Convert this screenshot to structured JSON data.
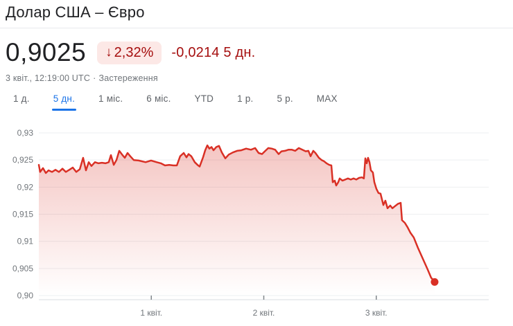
{
  "header": {
    "title": "Долар США – Євро"
  },
  "quote": {
    "price": "0,9025",
    "change_arrow": "↓",
    "change_percent": "2,32%",
    "change_value": "-0,0214",
    "change_period": "5 дн.",
    "timestamp": "3 квіт., 12:19:00 UTC",
    "separator": "·",
    "disclaimer": "Застереження"
  },
  "tabs": [
    {
      "id": "1d",
      "label": "1 д.",
      "selected": false
    },
    {
      "id": "5d",
      "label": "5 дн.",
      "selected": true
    },
    {
      "id": "1mo",
      "label": "1 міс.",
      "selected": false
    },
    {
      "id": "6mo",
      "label": "6 міс.",
      "selected": false
    },
    {
      "id": "ytd",
      "label": "YTD",
      "selected": false
    },
    {
      "id": "1y",
      "label": "1 р.",
      "selected": false
    },
    {
      "id": "5y",
      "label": "5 р.",
      "selected": false
    },
    {
      "id": "max",
      "label": "MAX",
      "selected": false
    }
  ],
  "colors": {
    "accent_blue": "#1a73e8",
    "negative_text": "#a50e0e",
    "badge_bg": "#fce8e6",
    "line_red": "#d93025",
    "text_primary": "#202124",
    "text_secondary": "#70757a",
    "grid": "#edeff1",
    "axis": "#dadce0",
    "tick": "#80868b",
    "divider": "#e8eaed"
  },
  "chart_data": {
    "type": "area",
    "title": "Долар США – Євро, 5 дн.",
    "xlabel": "",
    "ylabel": "",
    "x_unit": "days since 31 бер. 00:00 UTC",
    "xlim": [
      0,
      4
    ],
    "ylim": [
      0.9,
      0.93
    ],
    "grid": true,
    "legend": "none",
    "line_color": "#d93025",
    "fill_gradient_top_opacity": 0.3,
    "end_dot": true,
    "last_value": 0.9025,
    "y_ticks": [
      {
        "value": 0.93,
        "label": "0,93"
      },
      {
        "value": 0.925,
        "label": "0,925"
      },
      {
        "value": 0.92,
        "label": "0,92"
      },
      {
        "value": 0.915,
        "label": "0,915"
      },
      {
        "value": 0.91,
        "label": "0,91"
      },
      {
        "value": 0.905,
        "label": "0,905"
      },
      {
        "value": 0.9,
        "label": "0,90"
      }
    ],
    "x_ticks": [
      {
        "value": 1,
        "label": "1 квіт."
      },
      {
        "value": 2,
        "label": "2 квіт."
      },
      {
        "value": 3,
        "label": "3 квіт."
      }
    ],
    "series": [
      {
        "name": "USD/EUR",
        "points": [
          [
            0.0,
            0.9241
          ],
          [
            0.012,
            0.9228
          ],
          [
            0.037,
            0.9235
          ],
          [
            0.062,
            0.9226
          ],
          [
            0.086,
            0.9231
          ],
          [
            0.117,
            0.9228
          ],
          [
            0.148,
            0.9232
          ],
          [
            0.179,
            0.9228
          ],
          [
            0.21,
            0.9234
          ],
          [
            0.24,
            0.9228
          ],
          [
            0.271,
            0.9232
          ],
          [
            0.302,
            0.9236
          ],
          [
            0.333,
            0.9228
          ],
          [
            0.364,
            0.9233
          ],
          [
            0.394,
            0.9254
          ],
          [
            0.419,
            0.9231
          ],
          [
            0.444,
            0.9246
          ],
          [
            0.468,
            0.9239
          ],
          [
            0.499,
            0.9246
          ],
          [
            0.53,
            0.9244
          ],
          [
            0.561,
            0.9245
          ],
          [
            0.592,
            0.9244
          ],
          [
            0.622,
            0.9246
          ],
          [
            0.641,
            0.9259
          ],
          [
            0.666,
            0.9241
          ],
          [
            0.69,
            0.925
          ],
          [
            0.715,
            0.9267
          ],
          [
            0.74,
            0.926
          ],
          [
            0.764,
            0.9254
          ],
          [
            0.789,
            0.9263
          ],
          [
            0.813,
            0.9257
          ],
          [
            0.844,
            0.925
          ],
          [
            0.887,
            0.9249
          ],
          [
            0.949,
            0.9246
          ],
          [
            0.998,
            0.9249
          ],
          [
            1.048,
            0.9246
          ],
          [
            1.085,
            0.9244
          ],
          [
            1.122,
            0.924
          ],
          [
            1.159,
            0.9241
          ],
          [
            1.196,
            0.924
          ],
          [
            1.227,
            0.924
          ],
          [
            1.257,
            0.9257
          ],
          [
            1.288,
            0.9263
          ],
          [
            1.313,
            0.9255
          ],
          [
            1.331,
            0.9261
          ],
          [
            1.356,
            0.9257
          ],
          [
            1.386,
            0.9246
          ],
          [
            1.411,
            0.9241
          ],
          [
            1.43,
            0.9238
          ],
          [
            1.46,
            0.9255
          ],
          [
            1.479,
            0.9268
          ],
          [
            1.498,
            0.9277
          ],
          [
            1.516,
            0.9271
          ],
          [
            1.535,
            0.9274
          ],
          [
            1.553,
            0.9268
          ],
          [
            1.578,
            0.9274
          ],
          [
            1.602,
            0.9276
          ],
          [
            1.627,
            0.9264
          ],
          [
            1.658,
            0.9253
          ],
          [
            1.689,
            0.926
          ],
          [
            1.726,
            0.9264
          ],
          [
            1.763,
            0.9267
          ],
          [
            1.8,
            0.9268
          ],
          [
            1.843,
            0.9271
          ],
          [
            1.886,
            0.9269
          ],
          [
            1.923,
            0.9272
          ],
          [
            1.954,
            0.9263
          ],
          [
            1.984,
            0.9261
          ],
          [
            2.009,
            0.9266
          ],
          [
            2.04,
            0.9272
          ],
          [
            2.071,
            0.9271
          ],
          [
            2.101,
            0.9269
          ],
          [
            2.132,
            0.9261
          ],
          [
            2.157,
            0.9266
          ],
          [
            2.188,
            0.9267
          ],
          [
            2.219,
            0.9269
          ],
          [
            2.25,
            0.9269
          ],
          [
            2.28,
            0.9267
          ],
          [
            2.311,
            0.9272
          ],
          [
            2.342,
            0.9269
          ],
          [
            2.373,
            0.9266
          ],
          [
            2.397,
            0.9267
          ],
          [
            2.416,
            0.9257
          ],
          [
            2.44,
            0.9267
          ],
          [
            2.459,
            0.9263
          ],
          [
            2.49,
            0.9254
          ],
          [
            2.514,
            0.925
          ],
          [
            2.533,
            0.9248
          ],
          [
            2.558,
            0.9244
          ],
          [
            2.582,
            0.9241
          ],
          [
            2.601,
            0.924
          ],
          [
            2.613,
            0.9209
          ],
          [
            2.631,
            0.9212
          ],
          [
            2.644,
            0.9203
          ],
          [
            2.662,
            0.9209
          ],
          [
            2.675,
            0.9216
          ],
          [
            2.699,
            0.9212
          ],
          [
            2.724,
            0.9214
          ],
          [
            2.748,
            0.9216
          ],
          [
            2.773,
            0.9214
          ],
          [
            2.798,
            0.9216
          ],
          [
            2.822,
            0.9214
          ],
          [
            2.847,
            0.9217
          ],
          [
            2.872,
            0.9218
          ],
          [
            2.89,
            0.9216
          ],
          [
            2.903,
            0.9253
          ],
          [
            2.915,
            0.9244
          ],
          [
            2.927,
            0.9254
          ],
          [
            2.94,
            0.9246
          ],
          [
            2.952,
            0.9231
          ],
          [
            2.97,
            0.9227
          ],
          [
            2.983,
            0.9209
          ],
          [
            3.001,
            0.9197
          ],
          [
            3.02,
            0.9189
          ],
          [
            3.038,
            0.9188
          ],
          [
            3.063,
            0.9167
          ],
          [
            3.081,
            0.9175
          ],
          [
            3.1,
            0.9161
          ],
          [
            3.124,
            0.9166
          ],
          [
            3.143,
            0.9161
          ],
          [
            3.167,
            0.9165
          ],
          [
            3.192,
            0.9169
          ],
          [
            3.217,
            0.9171
          ],
          [
            3.229,
            0.9139
          ],
          [
            3.254,
            0.9134
          ],
          [
            3.278,
            0.9126
          ],
          [
            3.303,
            0.9116
          ],
          [
            3.334,
            0.9107
          ],
          [
            3.371,
            0.9088
          ],
          [
            3.414,
            0.9068
          ],
          [
            3.457,
            0.9048
          ],
          [
            3.488,
            0.9033
          ],
          [
            3.519,
            0.9025
          ]
        ]
      }
    ]
  }
}
